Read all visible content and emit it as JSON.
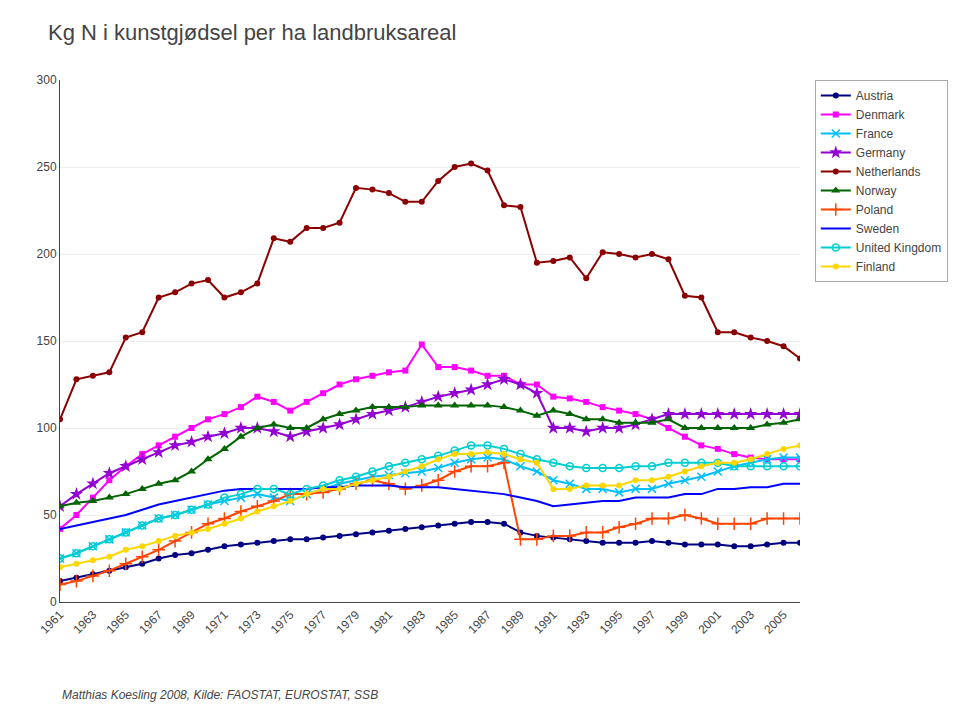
{
  "chart_data": {
    "type": "line",
    "title": "Kg N i kunstgjødsel per ha landbruksareal",
    "annotations": [
      "Matthias Koesling 2008, Kilde: FAOSTAT, EUROSTAT, SSB"
    ],
    "x": [
      1961,
      1962,
      1963,
      1964,
      1965,
      1966,
      1967,
      1968,
      1969,
      1970,
      1971,
      1972,
      1973,
      1974,
      1975,
      1976,
      1977,
      1978,
      1979,
      1980,
      1981,
      1982,
      1983,
      1984,
      1985,
      1986,
      1987,
      1988,
      1989,
      1990,
      1991,
      1992,
      1993,
      1994,
      1995,
      1996,
      1997,
      1998,
      1999,
      2000,
      2001,
      2002,
      2003,
      2004,
      2005,
      2006
    ],
    "series": [
      {
        "name": "Austria",
        "color": "#000080",
        "marker": "circle",
        "values": [
          12,
          14,
          16,
          18,
          20,
          22,
          25,
          27,
          28,
          30,
          32,
          33,
          34,
          35,
          36,
          36,
          37,
          38,
          39,
          40,
          41,
          42,
          43,
          44,
          45,
          46,
          46,
          45,
          40,
          38,
          37,
          36,
          35,
          34,
          34,
          34,
          35,
          34,
          33,
          33,
          33,
          32,
          32,
          33,
          34,
          34
        ]
      },
      {
        "name": "Denmark",
        "color": "#FF00FF",
        "marker": "square",
        "values": [
          42,
          50,
          60,
          70,
          78,
          85,
          90,
          95,
          100,
          105,
          108,
          112,
          118,
          115,
          110,
          115,
          120,
          125,
          128,
          130,
          132,
          133,
          148,
          135,
          135,
          133,
          130,
          130,
          125,
          125,
          118,
          117,
          115,
          112,
          110,
          108,
          105,
          100,
          95,
          90,
          88,
          85,
          83,
          82,
          82,
          82
        ]
      },
      {
        "name": "France",
        "color": "#00BFFF",
        "marker": "x",
        "values": [
          25,
          28,
          32,
          36,
          40,
          44,
          48,
          50,
          53,
          56,
          58,
          60,
          62,
          60,
          58,
          62,
          65,
          68,
          70,
          72,
          73,
          74,
          75,
          77,
          80,
          82,
          83,
          82,
          78,
          75,
          70,
          68,
          65,
          65,
          63,
          65,
          65,
          68,
          70,
          72,
          75,
          78,
          80,
          82,
          83,
          83
        ]
      },
      {
        "name": "Germany",
        "color": "#9400D3",
        "marker": "star",
        "values": [
          55,
          62,
          68,
          74,
          78,
          82,
          86,
          90,
          92,
          95,
          97,
          100,
          100,
          98,
          95,
          98,
          100,
          102,
          105,
          108,
          110,
          112,
          115,
          118,
          120,
          122,
          125,
          128,
          125,
          120,
          100,
          100,
          98,
          100,
          100,
          102,
          105,
          108,
          108,
          108,
          108,
          108,
          108,
          108,
          108,
          108
        ]
      },
      {
        "name": "Netherlands",
        "color": "#8B0000",
        "marker": "circle",
        "values": [
          105,
          128,
          130,
          132,
          152,
          155,
          175,
          178,
          183,
          185,
          175,
          178,
          183,
          209,
          207,
          215,
          215,
          218,
          238,
          237,
          235,
          230,
          230,
          242,
          250,
          252,
          248,
          228,
          227,
          195,
          196,
          198,
          186,
          201,
          200,
          198,
          200,
          197,
          176,
          175,
          155,
          155,
          152,
          150,
          147,
          140
        ]
      },
      {
        "name": "Norway",
        "color": "#006400",
        "marker": "triangle",
        "values": [
          55,
          57,
          58,
          60,
          62,
          65,
          68,
          70,
          75,
          82,
          88,
          95,
          100,
          102,
          100,
          100,
          105,
          108,
          110,
          112,
          112,
          112,
          113,
          113,
          113,
          113,
          113,
          112,
          110,
          107,
          110,
          108,
          105,
          105,
          103,
          103,
          103,
          105,
          100,
          100,
          100,
          100,
          100,
          102,
          103,
          105
        ]
      },
      {
        "name": "Poland",
        "color": "#FF4500",
        "marker": "plus",
        "values": [
          10,
          12,
          15,
          18,
          22,
          26,
          30,
          35,
          40,
          45,
          48,
          52,
          55,
          58,
          62,
          62,
          63,
          65,
          68,
          70,
          68,
          65,
          67,
          70,
          75,
          78,
          78,
          80,
          36,
          36,
          38,
          38,
          40,
          40,
          43,
          45,
          48,
          48,
          50,
          48,
          45,
          45,
          45,
          48,
          48,
          48
        ]
      },
      {
        "name": "Sweden",
        "color": "#0000FF",
        "marker": "none",
        "values": [
          42,
          44,
          46,
          48,
          50,
          53,
          56,
          58,
          60,
          62,
          64,
          65,
          65,
          65,
          65,
          65,
          66,
          66,
          67,
          67,
          67,
          66,
          66,
          66,
          65,
          64,
          63,
          62,
          60,
          58,
          55,
          56,
          57,
          58,
          58,
          60,
          60,
          60,
          62,
          62,
          65,
          65,
          66,
          66,
          68,
          68
        ]
      },
      {
        "name": "United Kingdom",
        "color": "#00CED1",
        "marker": "open_circle",
        "values": [
          25,
          28,
          32,
          36,
          40,
          44,
          48,
          50,
          53,
          56,
          60,
          62,
          65,
          65,
          62,
          65,
          67,
          70,
          72,
          75,
          78,
          80,
          82,
          84,
          87,
          90,
          90,
          88,
          85,
          82,
          80,
          78,
          77,
          77,
          77,
          78,
          78,
          80,
          80,
          80,
          80,
          78,
          78,
          78,
          78,
          78
        ]
      },
      {
        "name": "Finland",
        "color": "#FFD700",
        "marker": "circle",
        "values": [
          20,
          22,
          24,
          26,
          30,
          32,
          35,
          38,
          40,
          42,
          45,
          48,
          52,
          55,
          58,
          62,
          65,
          65,
          68,
          70,
          72,
          75,
          78,
          82,
          85,
          85,
          86,
          85,
          82,
          80,
          65,
          65,
          67,
          67,
          67,
          70,
          70,
          72,
          75,
          78,
          80,
          80,
          82,
          85,
          88,
          90
        ]
      }
    ],
    "xlim": [
      1961,
      2006
    ],
    "xticks": [
      1961,
      1963,
      1965,
      1967,
      1969,
      1971,
      1973,
      1975,
      1977,
      1979,
      1981,
      1983,
      1985,
      1987,
      1989,
      1991,
      1993,
      1995,
      1997,
      1999,
      2001,
      2003,
      2005
    ],
    "ylim": [
      0,
      300
    ],
    "yticks": [
      0,
      50,
      100,
      150,
      200,
      250,
      300
    ],
    "grid": "y",
    "legend": "upper right"
  }
}
